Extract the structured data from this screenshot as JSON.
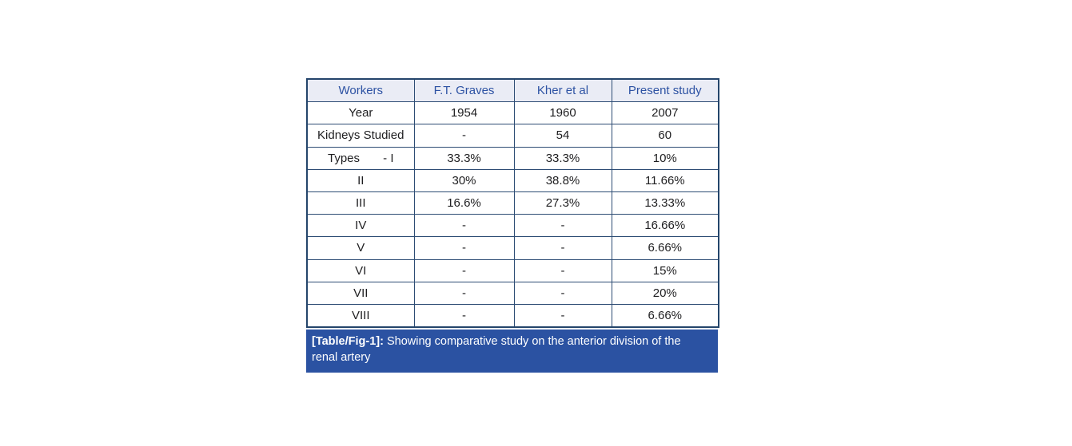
{
  "figure": {
    "table": {
      "columns": [
        "Workers",
        "F.T. Graves",
        "Kher et al",
        "Present study"
      ],
      "rows": [
        {
          "label": "Year",
          "values": [
            "1954",
            "1960",
            "2007"
          ]
        },
        {
          "label": "Kidneys Studied",
          "values": [
            "-",
            "54",
            "60"
          ]
        },
        {
          "label": "Types       - I",
          "values": [
            "33.3%",
            "33.3%",
            "10%"
          ]
        },
        {
          "label": "II",
          "values": [
            "30%",
            "38.8%",
            "11.66%"
          ]
        },
        {
          "label": "III",
          "values": [
            "16.6%",
            "27.3%",
            "13.33%"
          ]
        },
        {
          "label": "IV",
          "values": [
            "-",
            "-",
            "16.66%"
          ]
        },
        {
          "label": "V",
          "values": [
            "-",
            "-",
            "6.66%"
          ]
        },
        {
          "label": "VI",
          "values": [
            "-",
            "-",
            "15%"
          ]
        },
        {
          "label": "VII",
          "values": [
            "-",
            "-",
            "20%"
          ]
        },
        {
          "label": "VIII",
          "values": [
            "-",
            "-",
            "6.66%"
          ]
        }
      ]
    },
    "caption": {
      "prefix": "[Table/Fig-1]:",
      "line1": "Showing comparative study on the anterior division of the",
      "line2": "renal artery"
    },
    "colors": {
      "header_bg": "#eaecf5",
      "header_text": "#2d52a3",
      "grid_line": "#2d4c74",
      "outer_border": "#24456b",
      "caption_bg": "#2b52a2",
      "caption_text": "#ffffff",
      "body_text": "#1e1e20"
    }
  },
  "chart_data": {
    "type": "table",
    "title": "[Table/Fig-1]: Showing comparative study on the anterior division of the renal artery",
    "columns": [
      "Workers",
      "F.T. Graves",
      "Kher et al",
      "Present study"
    ],
    "rows": [
      [
        "Year",
        "1954",
        "1960",
        "2007"
      ],
      [
        "Kidneys Studied",
        "-",
        "54",
        "60"
      ],
      [
        "Types - I",
        "33.3%",
        "33.3%",
        "10%"
      ],
      [
        "II",
        "30%",
        "38.8%",
        "11.66%"
      ],
      [
        "III",
        "16.6%",
        "27.3%",
        "13.33%"
      ],
      [
        "IV",
        "-",
        "-",
        "16.66%"
      ],
      [
        "V",
        "-",
        "-",
        "6.66%"
      ],
      [
        "VI",
        "-",
        "-",
        "15%"
      ],
      [
        "VII",
        "-",
        "-",
        "20%"
      ],
      [
        "VIII",
        "-",
        "-",
        "6.66%"
      ]
    ]
  }
}
